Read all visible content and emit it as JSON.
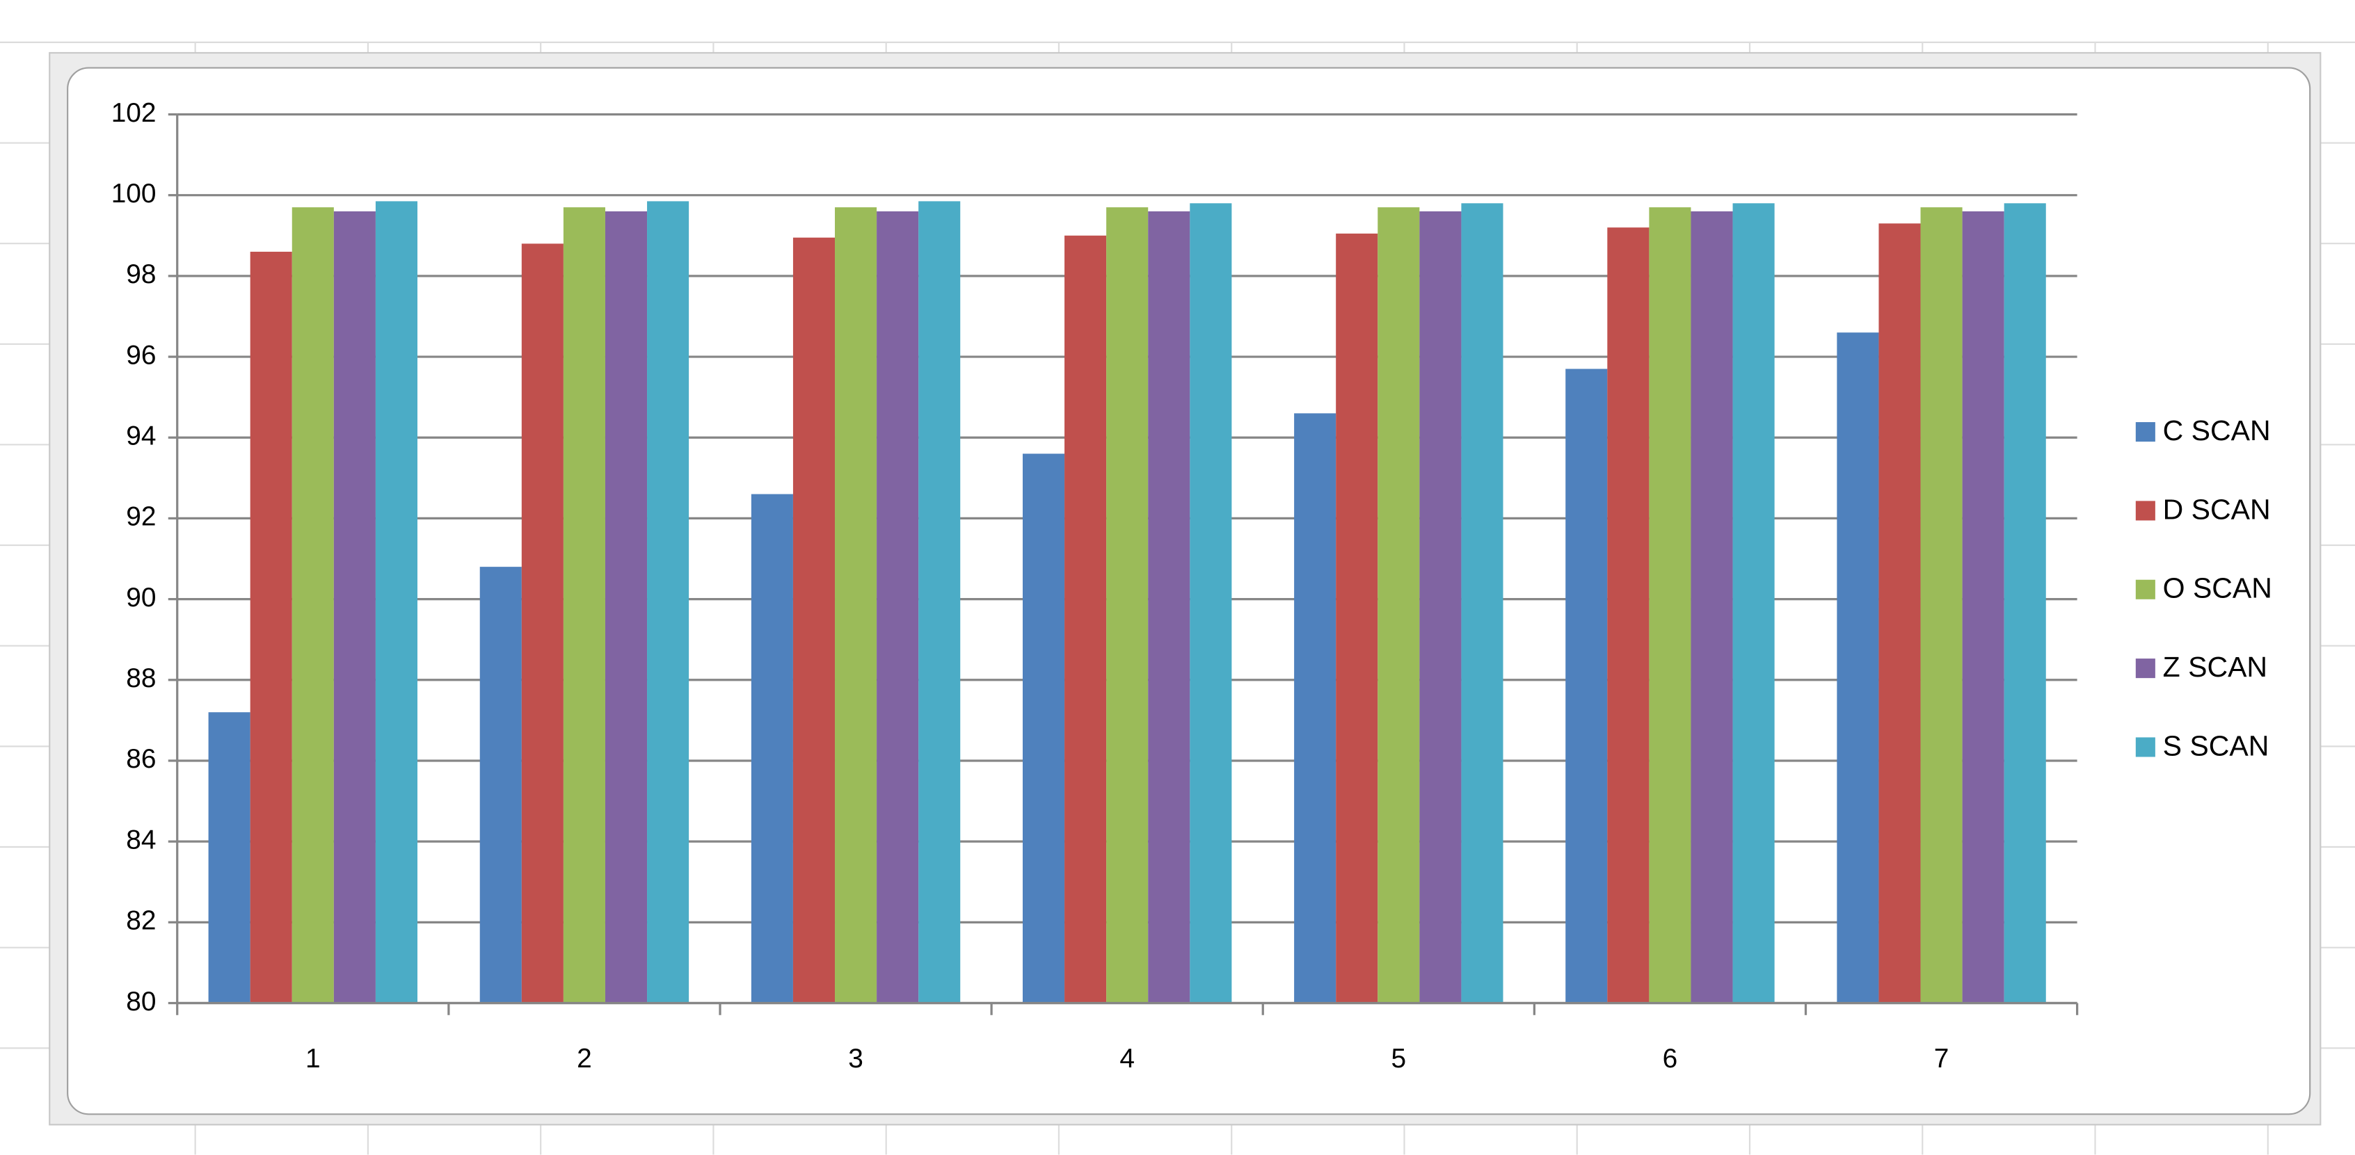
{
  "chart_data": {
    "type": "bar",
    "categories": [
      "1",
      "2",
      "3",
      "4",
      "5",
      "6",
      "7"
    ],
    "series": [
      {
        "name": "C SCAN",
        "color": "#4f81bd",
        "values": [
          87.2,
          90.8,
          92.6,
          93.6,
          94.6,
          95.7,
          96.6
        ]
      },
      {
        "name": "D SCAN",
        "color": "#c0504d",
        "values": [
          98.6,
          98.8,
          98.95,
          99.0,
          99.05,
          99.2,
          99.3
        ]
      },
      {
        "name": "O SCAN",
        "color": "#9bbb59",
        "values": [
          99.7,
          99.7,
          99.7,
          99.7,
          99.7,
          99.7,
          99.7
        ]
      },
      {
        "name": "Z SCAN",
        "color": "#8064a2",
        "values": [
          99.6,
          99.6,
          99.6,
          99.6,
          99.6,
          99.6,
          99.6
        ]
      },
      {
        "name": "S SCAN",
        "color": "#4bacc6",
        "values": [
          99.85,
          99.85,
          99.85,
          99.8,
          99.8,
          99.8,
          99.8
        ]
      }
    ],
    "ylim": [
      80,
      102
    ],
    "yticks": [
      80,
      82,
      84,
      86,
      88,
      90,
      92,
      94,
      96,
      98,
      100,
      102
    ],
    "grid": true,
    "legend": "right"
  }
}
